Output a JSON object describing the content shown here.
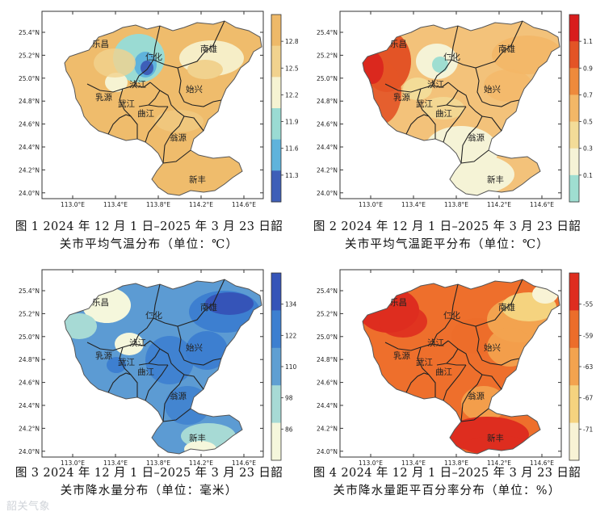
{
  "palettes": {
    "temperature": [
      "#3e5fb8",
      "#5fb3dc",
      "#9adbd3",
      "#f6f3d2",
      "#f1d28e",
      "#eeb969"
    ],
    "anomaly": [
      "#9fded1",
      "#f5f3d6",
      "#f3dc98",
      "#f3b767",
      "#ee8a3c",
      "#e35426",
      "#d81d1d"
    ],
    "precipitation": [
      "#f5f7dc",
      "#a7dad5",
      "#5f9fd2",
      "#3d7fd0",
      "#3554b8"
    ],
    "precip_anomaly": [
      "#f8f3d5",
      "#f5d37f",
      "#f3a34f",
      "#ec6d2a",
      "#de2d1f"
    ]
  },
  "maps": [
    {
      "caption": "图 1   2024 年 12 月 1 日–2025 年 3 月 23 日韶",
      "caption_sub": "关市平均气温分布（单位：℃）",
      "colorbar_ticks": [
        "12.8",
        "12.5",
        "12.2",
        "11.9",
        "11.6",
        "11.3"
      ],
      "fill": "#efbc6c",
      "cities": [
        {
          "name": "乐昌"
        },
        {
          "name": "仁化"
        },
        {
          "name": "南雄"
        },
        {
          "name": "浈江"
        },
        {
          "name": "始兴"
        },
        {
          "name": "乳源"
        },
        {
          "name": "武江"
        },
        {
          "name": "曲江"
        },
        {
          "name": "翁源"
        },
        {
          "name": "新丰"
        }
      ]
    },
    {
      "caption": "图 2   2024 年 12 月 1 日–2025 年 3 月 23 日韶",
      "caption_sub": "关市平均气温距平分布（单位：℃）",
      "colorbar_ticks": [
        "1.1",
        "0.9",
        "0.7",
        "0.5",
        "0.3",
        "0.1"
      ],
      "fill": "#f3c27a",
      "cities": [
        {
          "name": "乐昌"
        },
        {
          "name": "仁化"
        },
        {
          "name": "南雄"
        },
        {
          "name": "浈江"
        },
        {
          "name": "始兴"
        },
        {
          "name": "乳源"
        },
        {
          "name": "武江"
        },
        {
          "name": "曲江"
        },
        {
          "name": "翁源"
        },
        {
          "name": "新丰"
        }
      ]
    },
    {
      "caption": "图 3   2024 年 12 月 1 日–2025 年 3 月 23 日韶",
      "caption_sub": "关市降水量分布（单位：毫米）",
      "colorbar_ticks": [
        "134",
        "122",
        "110",
        "98",
        "86"
      ],
      "fill": "#5c9bd3",
      "cities": [
        {
          "name": "乐昌"
        },
        {
          "name": "仁化"
        },
        {
          "name": "南雄"
        },
        {
          "name": "浈江"
        },
        {
          "name": "始兴"
        },
        {
          "name": "乳源"
        },
        {
          "name": "武江"
        },
        {
          "name": "曲江"
        },
        {
          "name": "翁源"
        },
        {
          "name": "新丰"
        }
      ]
    },
    {
      "caption": "图 4  2024 年 12 月 1 日–2025 年 3 月 23 日韶",
      "caption_sub": "关市降水量距平百分率分布（单位：%）",
      "colorbar_ticks": [
        "-55",
        "-59",
        "-63",
        "-67",
        "-71"
      ],
      "fill": "#ee6f2c",
      "cities": [
        {
          "name": "乐昌"
        },
        {
          "name": "仁化"
        },
        {
          "name": "南雄"
        },
        {
          "name": "浈江"
        },
        {
          "name": "始兴"
        },
        {
          "name": "乳源"
        },
        {
          "name": "武江"
        },
        {
          "name": "曲江"
        },
        {
          "name": "翁源"
        },
        {
          "name": "新丰"
        }
      ]
    }
  ],
  "axis": {
    "lat_labels": [
      "25.4°N",
      "25.2°N",
      "25.0°N",
      "24.8°N",
      "24.6°N",
      "24.4°N",
      "24.2°N",
      "24.0°N"
    ],
    "lon_labels": [
      "113.0°E",
      "113.4°E",
      "113.8°E",
      "114.2°E",
      "114.6°E"
    ]
  },
  "watermark": "韶关气象"
}
